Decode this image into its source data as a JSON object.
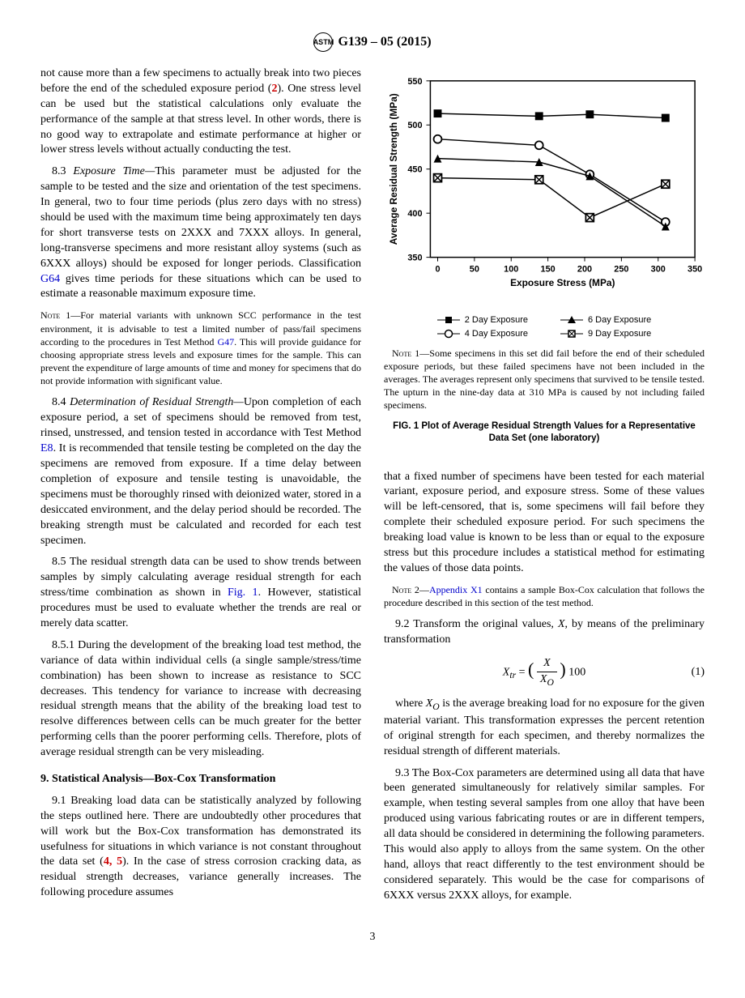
{
  "header": {
    "standard": "G139 – 05 (2015)"
  },
  "l": {
    "p1": "not cause more than a few specimens to actually break into two pieces before the end of the scheduled exposure period (",
    "p1ref": "2",
    "p1b": "). One stress level can be used but the statistical calculations only evaluate the performance of the sample at that stress level. In other words, there is no good way to extrapolate and estimate performance at higher or lower stress levels without actually conducting the test.",
    "s83n": "8.3 ",
    "s83t": "Exposure Time—",
    "s83": "This parameter must be adjusted for the sample to be tested and the size and orientation of the test specimens. In general, two to four time periods (plus zero days with no stress) should be used with the maximum time being approximately ten days for short transverse tests on 2XXX and 7XXX alloys. In general, long-transverse specimens and more resistant alloy systems (such as 6XXX alloys) should be exposed for longer periods. Classification ",
    "s83l": "G64",
    "s83b": " gives time periods for these situations which can be used to estimate a reasonable maximum exposure time.",
    "n1h": "Note 1—",
    "n1a": "For material variants with unknown SCC performance in the test environment, it is advisable to test a limited number of pass/fail specimens according to the procedures in Test Method ",
    "n1l": "G47",
    "n1b": ". This will provide guidance for choosing appropriate stress levels and exposure times for the sample. This can prevent the expenditure of large amounts of time and money for specimens that do not provide information with significant value.",
    "s84n": "8.4 ",
    "s84t": "Determination of Residual Strength—",
    "s84a": "Upon completion of each exposure period, a set of specimens should be removed from test, rinsed, unstressed, and tension tested in accordance with Test Method ",
    "s84l": "E8",
    "s84b": ". It is recommended that tensile testing be completed on the day the specimens are removed from exposure. If a time delay between completion of exposure and tensile testing is unavoidable, the specimens must be thoroughly rinsed with deionized water, stored in a desiccated environment, and the delay period should be recorded. The breaking strength must be calculated and recorded for each test specimen.",
    "s85n": "8.5 ",
    "s85a": "The residual strength data can be used to show trends between samples by simply calculating average residual strength for each stress/time combination as shown in ",
    "s85l": "Fig. 1",
    "s85b": ". However, statistical procedures must be used to evaluate whether the trends are real or merely data scatter.",
    "s851n": "8.5.1 ",
    "s851": "During the development of the breaking load test method, the variance of data within individual cells (a single sample/stress/time combination) has been shown to increase as resistance to SCC decreases. This tendency for variance to increase with decreasing residual strength means that the ability of the breaking load test to resolve differences between cells can be much greater for the better performing cells than the poorer performing cells. Therefore, plots of average residual strength can be very misleading.",
    "sec9h": "9. Statistical Analysis—Box-Cox Transformation",
    "s91n": "9.1 ",
    "s91a": "Breaking load data can be statistically analyzed by following the steps outlined here. There are undoubtedly other procedures that will work but the Box-Cox transformation has demonstrated its usefulness for situations in which variance is not constant throughout the data set (",
    "s91r1": "4, ",
    "s91r2": "5",
    "s91b": "). In the case of stress corrosion cracking data, as residual strength decreases, variance generally increases. The following procedure assumes"
  },
  "r": {
    "fn1h": "Note 1—",
    "fn1": "Some specimens in this set did fail before the end of their scheduled exposure periods, but these failed specimens have not been included in the averages. The averages represent only specimens that survived to be tensile tested. The upturn in the nine-day data at 310 MPa is caused by not including failed specimens.",
    "figcap": "FIG. 1 Plot of Average Residual Strength Values for a Representative Data Set (one laboratory)",
    "p1": "that a fixed number of specimens have been tested for each material variant, exposure period, and exposure stress. Some of these values will be left-censored, that is, some specimens will fail before they complete their scheduled exposure period. For such specimens the breaking load value is known to be less than or equal to the exposure stress but this procedure includes a statistical method for estimating the values of those data points.",
    "n2h": "Note 2—",
    "n2l": "Appendix X1",
    "n2b": " contains a sample Box-Cox calculation that follows the procedure described in this section of the test method.",
    "s92n": "9.2 ",
    "s92a": "Transform the original values, ",
    "s92x": "X",
    "s92b": ", by means of the preliminary transformation",
    "eqlhs": "X",
    "eqsub": "tr",
    "eqtop": "X",
    "eqbot": "X",
    "eqbotsub": "O",
    "eqmult": " 100",
    "eqn": "(1)",
    "s92c1": "where ",
    "s92xo": "X",
    "s92xosub": "O",
    "s92c2": " is the average breaking load for no exposure for the given material variant. This transformation expresses the percent retention of original strength for each specimen, and thereby normalizes the residual strength of different materials.",
    "s93n": "9.3 ",
    "s93": "The Box-Cox parameters are determined using all data that have been generated simultaneously for relatively similar samples. For example, when testing several samples from one alloy that have been produced using various fabricating routes or are in different tempers, all data should be considered in determining the following parameters. This would also apply to alloys from the same system. On the other hand, alloys that react differently to the test environment should be considered separately. This would be the case for comparisons of 6XXX versus 2XXX alloys, for example."
  },
  "chart": {
    "ylabel": "Average Residual Strength (MPa)",
    "xlabel": "Exposure Stress (MPa)",
    "xticks": [
      0,
      50,
      100,
      150,
      200,
      250,
      300,
      350
    ],
    "yticks": [
      350,
      400,
      450,
      500,
      550
    ],
    "xlim": [
      -10,
      350
    ],
    "ylim": [
      350,
      550
    ],
    "legend": {
      "d2": "2 Day Exposure",
      "d4": "4 Day Exposure",
      "d6": "6 Day Exposure",
      "d9": "9 Day Exposure"
    },
    "series": {
      "d2": {
        "x": [
          0,
          138,
          207,
          310
        ],
        "y": [
          513,
          510,
          512,
          508
        ],
        "marker": "square-filled"
      },
      "d4": {
        "x": [
          0,
          138,
          207,
          310
        ],
        "y": [
          484,
          477,
          444,
          390
        ],
        "marker": "circle-open"
      },
      "d6": {
        "x": [
          0,
          138,
          207,
          310
        ],
        "y": [
          462,
          458,
          442,
          385
        ],
        "marker": "triangle-filled"
      },
      "d9": {
        "x": [
          0,
          138,
          207,
          310
        ],
        "y": [
          440,
          438,
          395,
          433
        ],
        "marker": "square-x"
      }
    }
  },
  "page": "3"
}
